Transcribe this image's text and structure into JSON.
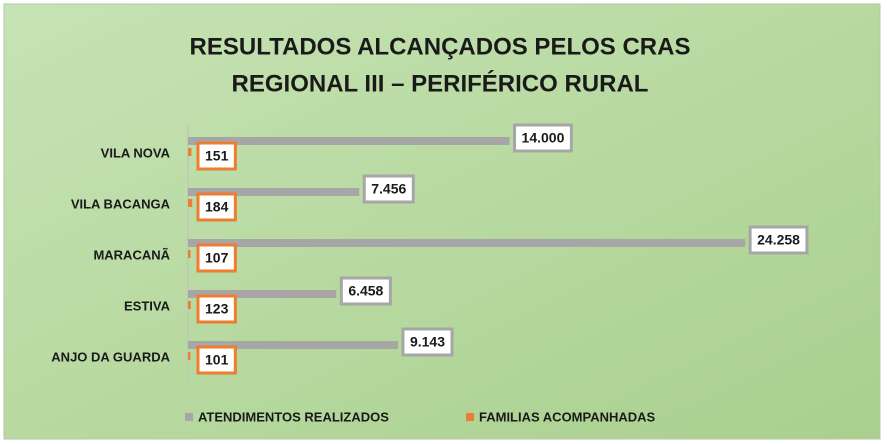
{
  "chart_data": {
    "type": "hbar",
    "title": [
      "RESULTADOS ALCANÇADOS PELOS CRAS",
      "REGIONAL III – PERIFÉRICO RURAL"
    ],
    "categories": [
      "VILA NOVA",
      "VILA BACANGA",
      "MARACANÃ",
      "ESTIVA",
      "ANJO DA GUARDA"
    ],
    "series": [
      {
        "name": "ATENDIMENTOS REALIZADOS",
        "color": "#a6a6a6",
        "values": [
          14000,
          7456,
          24258,
          6458,
          9143
        ],
        "value_labels": [
          "14.000",
          "7.456",
          "24.258",
          "6.458",
          "9.143"
        ]
      },
      {
        "name": "FAMILIAS ACOMPANHADAS",
        "color": "#ed7d31",
        "values": [
          151,
          184,
          107,
          123,
          101
        ]
      }
    ],
    "xlim": [
      0,
      30000
    ],
    "legend": "bottom"
  }
}
